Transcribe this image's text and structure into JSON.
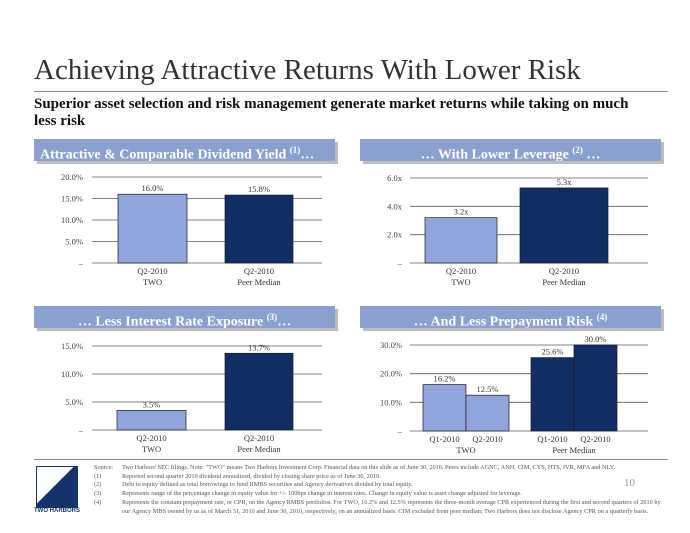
{
  "slide": {
    "title": "Achieving Attractive Returns With Lower Risk",
    "subtitle": "Superior asset selection and risk management generate market returns while taking on much less risk",
    "page_number": "10"
  },
  "colors": {
    "light_bar": "#8fa5dc",
    "dark_bar": "#0f2e63",
    "header": "#8aa1cf"
  },
  "panels": {
    "p1": {
      "title": "Attractive & Comparable Dividend Yield ",
      "sup": "(1)",
      "suffix": "…"
    },
    "p2": {
      "title": "… With Lower Leverage ",
      "sup": "(2)",
      "suffix": " …"
    },
    "p3": {
      "title": "… Less Interest Rate Exposure ",
      "sup": "(3)",
      "suffix": "…"
    },
    "p4": {
      "title": "… And Less Prepayment Risk ",
      "sup": "(4)",
      "suffix": ""
    }
  },
  "chart_data": [
    {
      "type": "bar",
      "categories": [
        [
          "Q2-2010",
          "TWO"
        ],
        [
          "Q2-2010",
          "Peer Median"
        ]
      ],
      "series": [
        {
          "values": [
            16.0,
            15.8
          ],
          "labels": [
            "16.0%",
            "15.8%"
          ]
        }
      ],
      "yticks": [
        0,
        5,
        10,
        15,
        20
      ],
      "ytick_labels": [
        "–",
        "5.0%",
        "10.0%",
        "15.0%",
        "20.0%"
      ],
      "ylim": [
        0,
        20
      ],
      "colors": [
        "#8fa5dc",
        "#0f2e63"
      ]
    },
    {
      "type": "bar",
      "categories": [
        [
          "Q2-2010",
          "TWO"
        ],
        [
          "Q2-2010",
          "Peer Median"
        ]
      ],
      "series": [
        {
          "values": [
            3.2,
            5.3
          ],
          "labels": [
            "3.2x",
            "5.3x"
          ]
        }
      ],
      "yticks": [
        0,
        2,
        4,
        6
      ],
      "ytick_labels": [
        "–",
        "2.0x",
        "4.0x",
        "6.0x"
      ],
      "ylim": [
        0,
        6
      ],
      "colors": [
        "#8fa5dc",
        "#0f2e63"
      ]
    },
    {
      "type": "bar",
      "categories": [
        [
          "Q2-2010",
          "TWO"
        ],
        [
          "Q2-2010",
          "Peer Median"
        ]
      ],
      "series": [
        {
          "values": [
            3.5,
            13.7
          ],
          "labels": [
            "3.5%",
            "13.7%"
          ]
        }
      ],
      "yticks": [
        0,
        5,
        10,
        15
      ],
      "ytick_labels": [
        "–",
        "5.0%",
        "10.0%",
        "15.0%"
      ],
      "ylim": [
        0,
        15
      ],
      "colors": [
        "#8fa5dc",
        "#0f2e63"
      ]
    },
    {
      "type": "bar",
      "categories": [
        [
          "Q1-2010"
        ],
        [
          "Q2-2010"
        ],
        [
          "Q1-2010"
        ],
        [
          "Q2-2010"
        ]
      ],
      "groups": [
        "TWO",
        "Peer Median"
      ],
      "series": [
        {
          "values": [
            16.2,
            12.5,
            25.6,
            30.0
          ],
          "labels": [
            "16.2%",
            "12.5%",
            "25.6%",
            "30.0%"
          ]
        }
      ],
      "yticks": [
        0,
        10,
        20,
        30
      ],
      "ytick_labels": [
        "–",
        "10.0%",
        "20.0%",
        "30.0%"
      ],
      "ylim": [
        0,
        30
      ],
      "colors": [
        "#8fa5dc",
        "#8fa5dc",
        "#0f2e63",
        "#0f2e63"
      ]
    }
  ],
  "logo": {
    "text": "TWO HARBORS"
  },
  "footnotes": [
    {
      "mark": "Source:",
      "text": "Two Harbors' SEC filings. Note: \"TWO\" means Two Harbors Investment Corp. Financial data on this slide as of June 30, 2010. Peers include AGNC, ANH, CIM, CYS, HTS, IVR, MFA and NLY."
    },
    {
      "mark": "(1)",
      "text": "Reported second quarter 2010 dividend annualized, divided by closing share price as of June 30, 2010."
    },
    {
      "mark": "(2)",
      "text": "Debt to equity defined as total borrowings to fund RMBS securities and Agency derivatives divided by total equity."
    },
    {
      "mark": "(3)",
      "text": "Represents range of the percentage change in equity value for +/- 100bps change in interest rates. Change in equity value is asset change adjusted for leverage."
    },
    {
      "mark": "(4)",
      "text": "Represents the constant prepayment rate, or CPR, on the Agency RMBS portfolios. For TWO, 16.2% and 12.5% represents the three-month average CPR experienced during the first and second quarters of 2010 by our Agency MBS owned by us as of March 31, 2010 and June 30, 2010, respectively, on an annualized basis. CIM excluded from peer median; Two Harbors does not disclose Agency CPR on a quarterly basis."
    }
  ]
}
